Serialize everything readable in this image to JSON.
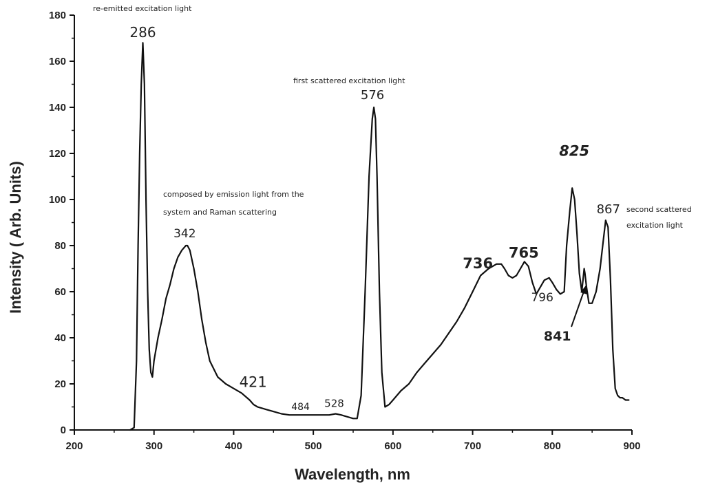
{
  "chart_data": {
    "type": "line",
    "title": "",
    "xlabel": "Wavelength, nm",
    "ylabel": "Intensity ( Arb. Units)",
    "xlim": [
      200,
      900
    ],
    "ylim": [
      0,
      180
    ],
    "xticks": [
      200,
      300,
      400,
      500,
      600,
      700,
      800,
      900
    ],
    "yticks": [
      0,
      20,
      40,
      60,
      80,
      100,
      120,
      140,
      160,
      180
    ],
    "grid": false,
    "series": [
      {
        "name": "",
        "x": [
          270,
          275,
          278,
          280,
          282,
          284,
          286,
          288,
          290,
          292,
          294,
          296,
          298,
          300,
          305,
          310,
          315,
          320,
          325,
          330,
          335,
          340,
          342,
          345,
          350,
          355,
          360,
          365,
          370,
          380,
          390,
          400,
          410,
          420,
          425,
          430,
          440,
          450,
          460,
          470,
          480,
          484,
          490,
          500,
          510,
          520,
          528,
          535,
          540,
          550,
          555,
          560,
          565,
          570,
          574,
          576,
          578,
          580,
          583,
          586,
          590,
          595,
          600,
          610,
          620,
          630,
          640,
          650,
          660,
          670,
          680,
          690,
          700,
          710,
          720,
          730,
          736,
          740,
          745,
          750,
          755,
          760,
          765,
          770,
          775,
          780,
          785,
          790,
          796,
          800,
          805,
          810,
          815,
          818,
          822,
          825,
          828,
          831,
          834,
          837,
          840,
          841,
          843,
          846,
          850,
          855,
          860,
          864,
          867,
          870,
          873,
          876,
          879,
          882,
          885,
          888,
          892,
          896
        ],
        "y": [
          0,
          1,
          30,
          80,
          120,
          150,
          168,
          150,
          100,
          60,
          35,
          25,
          23,
          30,
          40,
          48,
          57,
          63,
          70,
          75,
          78,
          80,
          80,
          78,
          70,
          60,
          48,
          38,
          30,
          23,
          20,
          18,
          16,
          13,
          11,
          10,
          9,
          8,
          7,
          6.5,
          6.5,
          6.5,
          6.5,
          6.5,
          6.5,
          6.5,
          7,
          6.5,
          6,
          5,
          5,
          15,
          60,
          110,
          135,
          140,
          135,
          110,
          60,
          25,
          10,
          11,
          13,
          17,
          20,
          25,
          29,
          33,
          37,
          42,
          47,
          53,
          60,
          67,
          70,
          72,
          72,
          70,
          67,
          66,
          67,
          70,
          73,
          71,
          64,
          59,
          62,
          65,
          66,
          64,
          61,
          59,
          60,
          80,
          95,
          105,
          100,
          85,
          68,
          60,
          70,
          68,
          62,
          55,
          55,
          60,
          70,
          82,
          91,
          88,
          65,
          35,
          18,
          15,
          14,
          14,
          13,
          13
        ]
      }
    ],
    "peak_labels": [
      {
        "text": "286",
        "x": 286,
        "y": 168
      },
      {
        "text": "342",
        "x": 342,
        "y": 80
      },
      {
        "text": "421",
        "x": 421,
        "y": 16
      },
      {
        "text": "484",
        "x": 484,
        "y": 6.5
      },
      {
        "text": "528",
        "x": 528,
        "y": 7
      },
      {
        "text": "576",
        "x": 576,
        "y": 140
      },
      {
        "text": "736",
        "x": 736,
        "y": 72
      },
      {
        "text": "765",
        "x": 765,
        "y": 73
      },
      {
        "text": "796",
        "x": 796,
        "y": 66
      },
      {
        "text": "825",
        "x": 825,
        "y": 105
      },
      {
        "text": "841",
        "x": 841,
        "y": 68
      },
      {
        "text": "867",
        "x": 867,
        "y": 91
      }
    ],
    "annotations": {
      "re_emitted": "re-emitted excitation light",
      "composed_line1": "composed by emission light from the",
      "composed_line2": "system and Raman scattering",
      "first_scattered": "first scattered excitation light",
      "second_line1": "second scattered",
      "second_line2": "excitation light"
    }
  }
}
